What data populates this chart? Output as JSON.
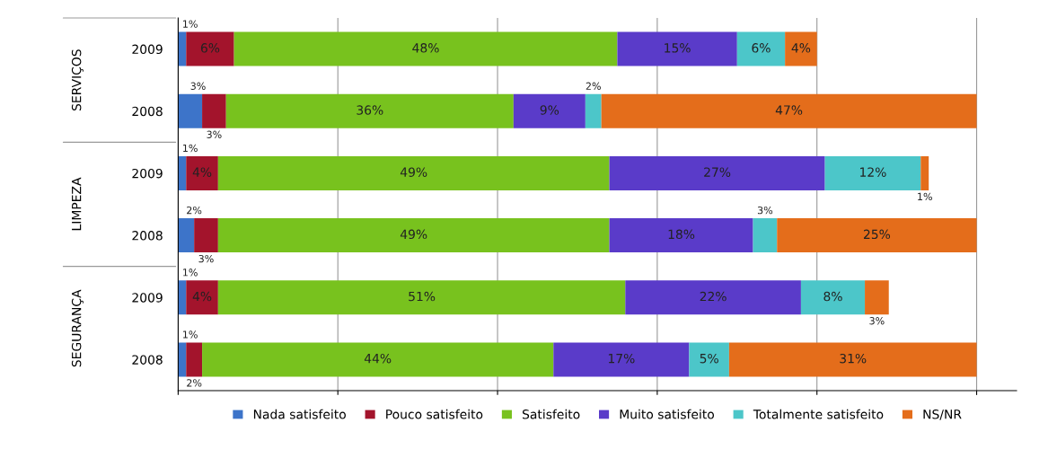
{
  "chart_data": {
    "type": "bar",
    "orientation": "horizontal",
    "stacked": true,
    "categories": [
      "2009",
      "2008",
      "2009",
      "2008",
      "2009",
      "2008"
    ],
    "series": [
      {
        "name": "Nada satisfeito",
        "color": "#3d74c9",
        "values": [
          1,
          3,
          1,
          2,
          1,
          1
        ],
        "value_labels": [
          "1%",
          "3%",
          "1%",
          "2%",
          "1%",
          "1%"
        ]
      },
      {
        "name": "Pouco satisfeito",
        "color": "#a3142c",
        "values": [
          6,
          3,
          4,
          3,
          4,
          2
        ],
        "value_labels": [
          "6%",
          "3%",
          "4%",
          "3%",
          "4%",
          "2%"
        ]
      },
      {
        "name": "Satisfeito",
        "color": "#78c21e",
        "values": [
          48,
          36,
          49,
          49,
          51,
          44
        ],
        "value_labels": [
          "48%",
          "36%",
          "49%",
          "49%",
          "51%",
          "44%"
        ]
      },
      {
        "name": "Muito satisfeito",
        "color": "#5a3bc9",
        "values": [
          15,
          9,
          27,
          18,
          22,
          17
        ],
        "value_labels": [
          "15%",
          "9%",
          "27%",
          "18%",
          "22%",
          "17%"
        ]
      },
      {
        "name": "Totalmente satisfeito",
        "color": "#4cc6c9",
        "values": [
          6,
          2,
          12,
          3,
          8,
          5
        ],
        "value_labels": [
          "6%",
          "2%",
          "12%",
          "3%",
          "8%",
          "5%"
        ]
      },
      {
        "name": "NS/NR",
        "color": "#e46d1b",
        "values": [
          4,
          47,
          1,
          25,
          3,
          31
        ],
        "value_labels": [
          "4%",
          "47%",
          "1%",
          "25%",
          "3%",
          "31%"
        ]
      }
    ],
    "annotations": [
      "SERVIÇOS",
      "LIMPEZA",
      "SEGURANÇA"
    ],
    "tick_labels": "y",
    "grid": "x",
    "legend": "bottom"
  }
}
